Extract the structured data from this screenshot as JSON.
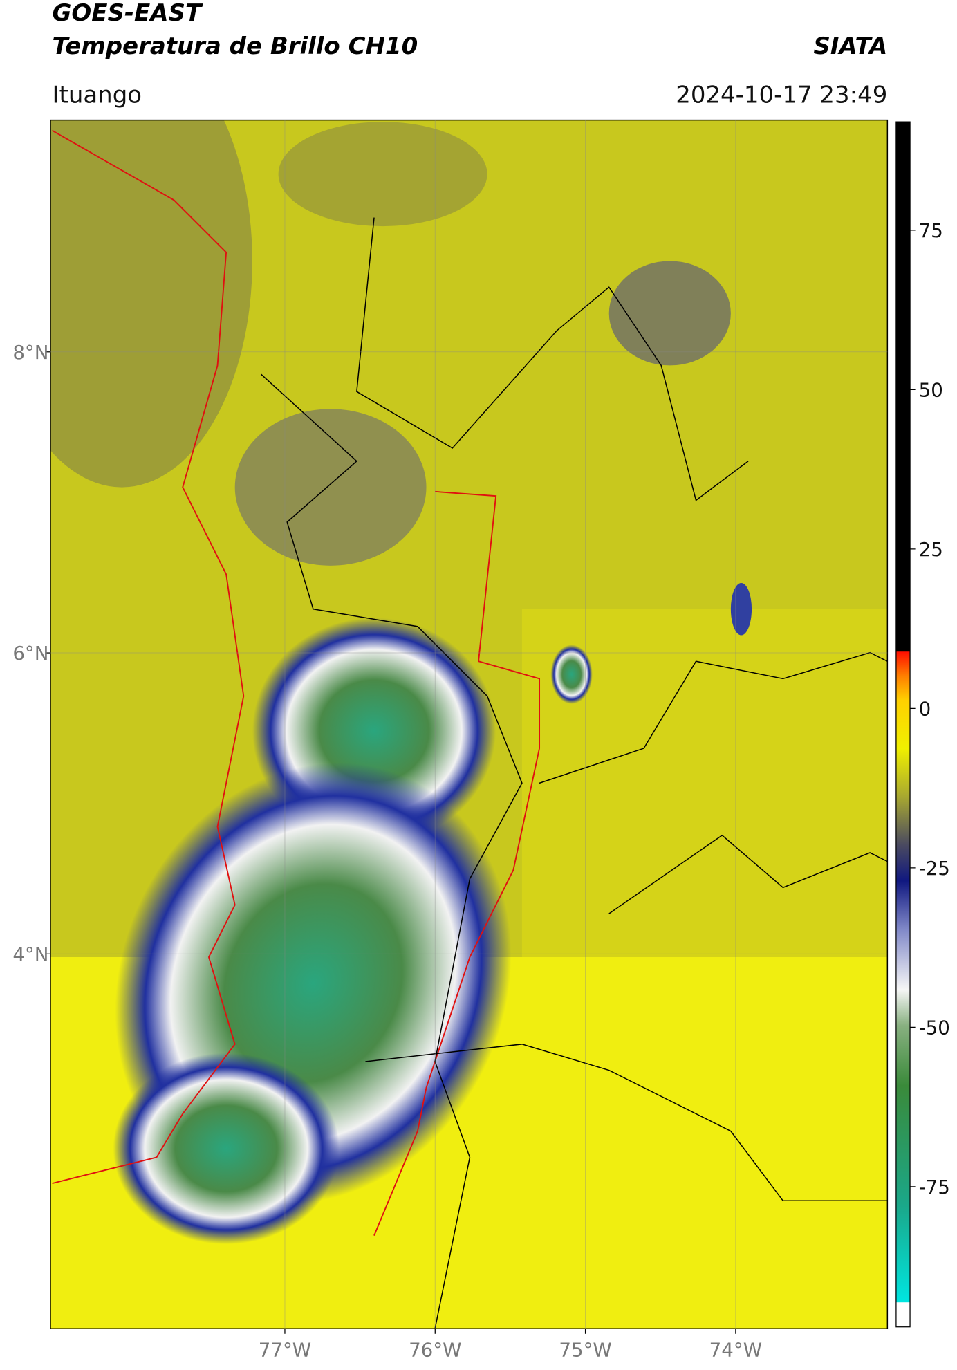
{
  "header": {
    "title": "GOES-EAST",
    "subtitle": "Temperatura de Brillo CH10",
    "source": "SIATA",
    "location": "Ituango",
    "datetime": "2024-10-17 23:49"
  },
  "map": {
    "lon_range": [
      -78.56,
      -72.99
    ],
    "lat_range": [
      1.51,
      9.54
    ],
    "lon_ticks": [
      {
        "value": -77,
        "label": "77°W"
      },
      {
        "value": -76,
        "label": "76°W"
      },
      {
        "value": -75,
        "label": "75°W"
      },
      {
        "value": -74,
        "label": "74°W"
      }
    ],
    "lat_ticks": [
      {
        "value": 8,
        "label": "8°N"
      },
      {
        "value": 6,
        "label": "6°N"
      },
      {
        "value": 4,
        "label": "4°N"
      }
    ]
  },
  "colorbar": {
    "range": [
      -97,
      92
    ],
    "ticks": [
      75,
      50,
      25,
      0,
      -25,
      -50,
      -75
    ]
  }
}
